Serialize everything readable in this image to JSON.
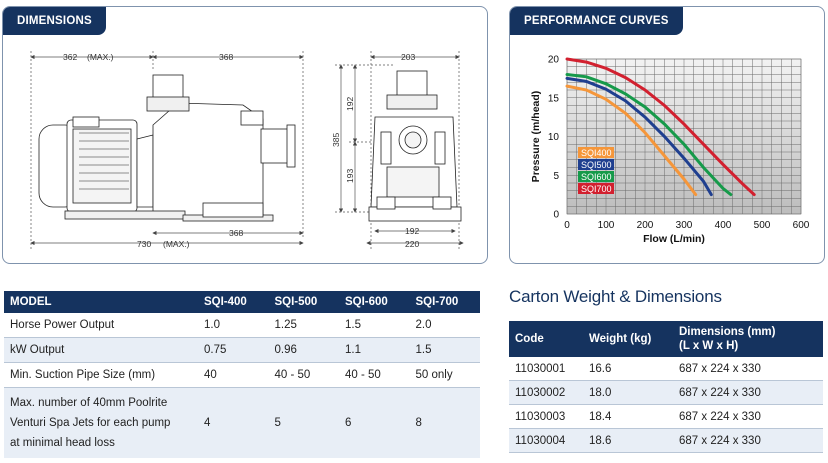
{
  "dimensions": {
    "title": "DIMENSIONS",
    "labels": {
      "max362": "362",
      "max_tag": "(MAX.)",
      "d368_top": "368",
      "d730": "730",
      "max_tag2": "(MAX.)",
      "d368_bottom": "368",
      "d203": "203",
      "d192a": "192",
      "d385": "385",
      "d193": "193",
      "d192b": "192",
      "d220": "220"
    }
  },
  "performance": {
    "title": "PERFORMANCE CURVES"
  },
  "chart_data": {
    "type": "line",
    "xlabel": "Flow (L/min)",
    "ylabel": "Pressure (m/head)",
    "xlim": [
      0,
      600
    ],
    "ylim": [
      0,
      20
    ],
    "x_ticks": [
      "0",
      "100",
      "200",
      "300",
      "400",
      "500",
      "600"
    ],
    "y_ticks": [
      "0",
      "5",
      "10",
      "15",
      "20"
    ],
    "grid": true,
    "legend_position": "left-center",
    "series": [
      {
        "name": "SQI400",
        "color": "#f5963a",
        "x": [
          0,
          50,
          100,
          150,
          200,
          250,
          300,
          330
        ],
        "y": [
          16.5,
          16.0,
          14.8,
          13.0,
          10.5,
          7.5,
          4.5,
          2.5
        ]
      },
      {
        "name": "SQI500",
        "color": "#1f3f8f",
        "x": [
          0,
          50,
          100,
          150,
          200,
          250,
          300,
          350,
          370
        ],
        "y": [
          17.5,
          17.1,
          16.1,
          14.6,
          12.5,
          10.0,
          7.2,
          4.2,
          2.5
        ]
      },
      {
        "name": "SQI600",
        "color": "#169a4a",
        "x": [
          0,
          50,
          100,
          150,
          200,
          250,
          300,
          350,
          400,
          420
        ],
        "y": [
          18.0,
          17.7,
          16.8,
          15.5,
          13.8,
          11.6,
          9.0,
          6.0,
          3.3,
          2.5
        ]
      },
      {
        "name": "SQI700",
        "color": "#d2202f",
        "x": [
          0,
          50,
          100,
          150,
          200,
          250,
          300,
          350,
          400,
          450,
          480
        ],
        "y": [
          20.0,
          19.6,
          18.8,
          17.6,
          16.0,
          14.0,
          11.6,
          9.0,
          6.4,
          3.9,
          2.5
        ]
      }
    ]
  },
  "model_table": {
    "headers": [
      "MODEL",
      "SQI-400",
      "SQI-500",
      "SQI-600",
      "SQI-700"
    ],
    "rows": [
      {
        "label": "Horse Power Output",
        "values": [
          "1.0",
          "1.25",
          "1.5",
          "2.0"
        ]
      },
      {
        "label": "kW Output",
        "values": [
          "0.75",
          "0.96",
          "1.1",
          "1.5"
        ]
      },
      {
        "label": "Min. Suction Pipe Size (mm)",
        "values": [
          "40",
          "40 - 50",
          "40 - 50",
          "50 only"
        ]
      }
    ],
    "jets_row": {
      "line1": "Max. number of 40mm Poolrite",
      "line2": "Venturi Spa Jets for each pump",
      "line3": "at minimal head loss",
      "values": [
        "4",
        "5",
        "6",
        "8"
      ]
    }
  },
  "carton": {
    "title": "Carton Weight & Dimensions",
    "headers": {
      "code": "Code",
      "weight": "Weight (kg)",
      "dims1": "Dimensions (mm)",
      "dims2": "(L x W x H)"
    },
    "rows": [
      {
        "code": "11030001",
        "weight": "16.6",
        "dims": "687 x 224 x 330"
      },
      {
        "code": "11030002",
        "weight": "18.0",
        "dims": "687 x 224 x 330"
      },
      {
        "code": "11030003",
        "weight": "18.4",
        "dims": "687 x 224 x 330"
      },
      {
        "code": "11030004",
        "weight": "18.6",
        "dims": "687 x 224 x 330"
      }
    ]
  }
}
